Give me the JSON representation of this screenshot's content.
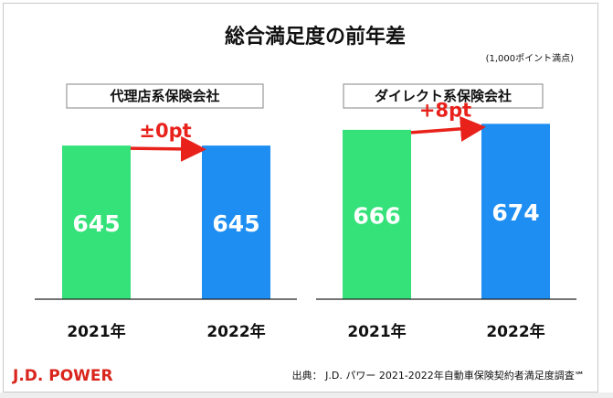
{
  "chart_data": [
    {
      "type": "bar",
      "title": "代理店系保険会社",
      "categories": [
        "2021年",
        "2022年"
      ],
      "values": [
        645,
        645
      ],
      "colors": [
        "#35e27a",
        "#1e8ef2"
      ],
      "change_label": "±0pt",
      "ylim": [
        0,
        800
      ]
    },
    {
      "type": "bar",
      "title": "ダイレクト系保険会社",
      "categories": [
        "2021年",
        "2022年"
      ],
      "values": [
        666,
        674
      ],
      "colors": [
        "#35e27a",
        "#1e8ef2"
      ],
      "change_label": "+8pt",
      "ylim": [
        0,
        800
      ]
    }
  ],
  "header": {
    "title": "総合満足度の前年差",
    "unit_note": "(1,000ポイント満点)"
  },
  "footer": {
    "brand": "J.D. POWER",
    "source": "出典： J.D. パワー 2021-2022年自動車保険契約者満足度調査℠"
  },
  "colors": {
    "arrow": "#e8211b",
    "label_text": "#ffffff",
    "brand": "#d9251d"
  }
}
